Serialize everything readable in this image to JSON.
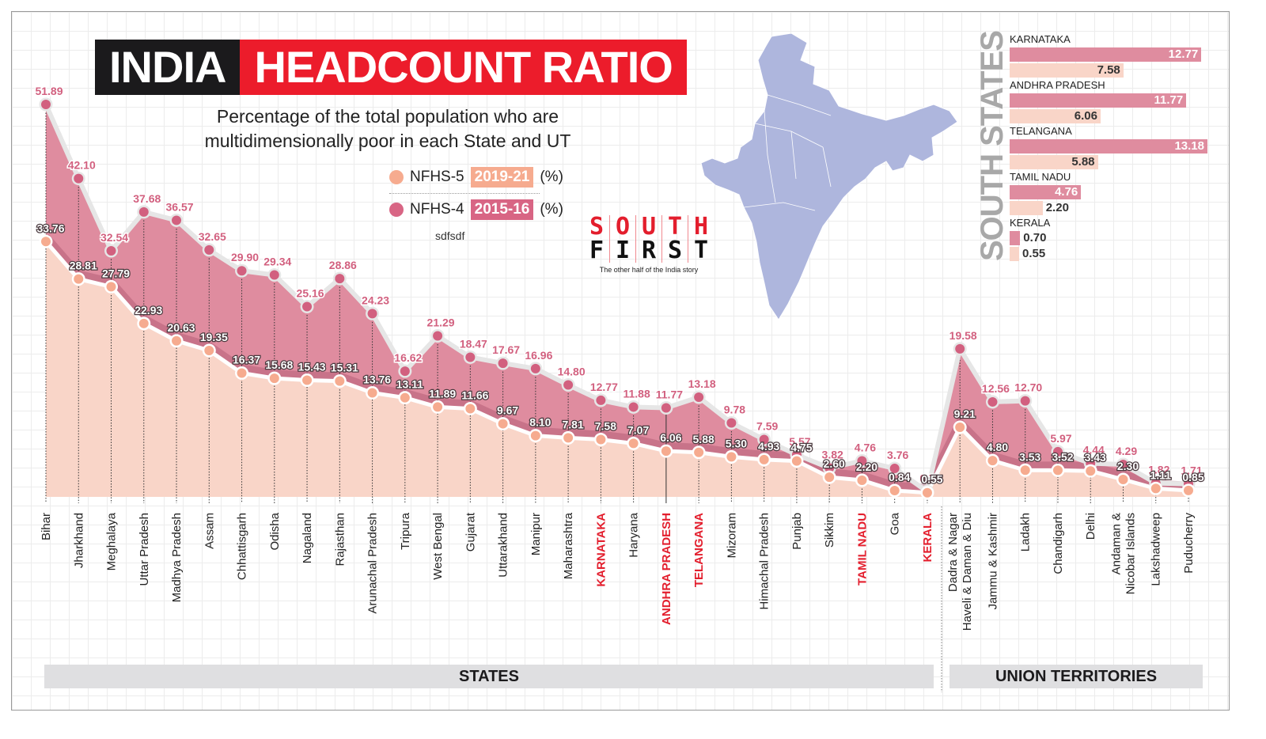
{
  "header": {
    "title_part1": "INDIA",
    "title_part2": "HEADCOUNT RATIO",
    "subtitle_line1": "Percentage of the total population who are",
    "subtitle_line2": "multidimensionally poor in each State and UT",
    "stray_text": "sdfsdf"
  },
  "legend": {
    "items": [
      {
        "label": "NFHS-5",
        "year": "2019-21",
        "unit": "(%)",
        "color": "#f6ab8f"
      },
      {
        "label": "NFHS-4",
        "year": "2015-16",
        "unit": "(%)",
        "color": "#d86584"
      }
    ]
  },
  "logo": {
    "row1": [
      "S",
      "O",
      "U",
      "T",
      "H"
    ],
    "row2": [
      "F",
      "I",
      "R",
      "S",
      "T"
    ],
    "tagline": "The other half of the India story",
    "color_red": "#e31e2d",
    "color_black": "#111111"
  },
  "colors": {
    "nfhs4_fill": "#df8c9f",
    "nfhs4_point": "#d2607f",
    "nfhs4_label": "#d2607f",
    "nfhs5_fill": "#f9d5c8",
    "nfhs5_point": "#f6ab8f",
    "highlight_label": "#e31e2d",
    "map": "#aeb6dd"
  },
  "south_panel": {
    "title": "SOUTH STATES",
    "states": [
      {
        "name": "KARNATAKA",
        "nfhs4": 12.77,
        "nfhs5": 7.58,
        "nfhs4_label": "12.77",
        "nfhs5_label": "7.58"
      },
      {
        "name": "ANDHRA PRADESH",
        "nfhs4": 11.77,
        "nfhs5": 6.06,
        "nfhs4_label": "11.77",
        "nfhs5_label": "6.06"
      },
      {
        "name": "TELANGANA",
        "nfhs4": 13.18,
        "nfhs5": 5.88,
        "nfhs4_label": "13.18",
        "nfhs5_label": "5.88"
      },
      {
        "name": "TAMIL NADU",
        "nfhs4": 4.76,
        "nfhs5": 2.2,
        "nfhs4_label": "4.76",
        "nfhs5_label": "2.20"
      },
      {
        "name": "KERALA",
        "nfhs4": 0.7,
        "nfhs5": 0.55,
        "nfhs4_label": "0.70",
        "nfhs5_label": "0.55"
      }
    ]
  },
  "footer": {
    "states_label": "STATES",
    "uts_label": "UNION TERRITORIES"
  },
  "chart_data": {
    "type": "area",
    "title": "INDIA HEADCOUNT RATIO",
    "subtitle": "Percentage of the total population who are multidimensionally poor in each State and UT",
    "xlabel": "",
    "ylabel": "",
    "ylim": [
      0,
      52
    ],
    "grid": true,
    "legend_position": "top-center",
    "categories": [
      "Bihar",
      "Jharkhand",
      "Meghalaya",
      "Uttar Pradesh",
      "Madhya Pradesh",
      "Assam",
      "Chhattisgarh",
      "Odisha",
      "Nagaland",
      "Rajasthan",
      "Arunachal Pradesh",
      "Tripura",
      "West Bengal",
      "Gujarat",
      "Uttarakhand",
      "Manipur",
      "Maharashtra",
      "KARNATAKA",
      "Haryana",
      "ANDHRA PRADESH",
      "TELANGANA",
      "Mizoram",
      "Himachal Pradesh",
      "Punjab",
      "Sikkim",
      "TAMIL NADU",
      "Goa",
      "KERALA",
      "Dadra & Nagar Haveli & Daman & Diu",
      "Jammu & Kashmir",
      "Ladakh",
      "Chandigarh",
      "Delhi",
      "Andaman & Nicobar Islands",
      "Lakshadweep",
      "Puducherry"
    ],
    "highlighted": [
      "KARNATAKA",
      "ANDHRA PRADESH",
      "TELANGANA",
      "TAMIL NADU",
      "KERALA"
    ],
    "group_split_index": 28,
    "groups": [
      "STATES",
      "UNION TERRITORIES"
    ],
    "series": [
      {
        "name": "NFHS-4 2015-16 (%)",
        "values": [
          51.89,
          42.1,
          32.54,
          37.68,
          36.57,
          32.65,
          29.9,
          29.34,
          25.16,
          28.86,
          24.23,
          16.62,
          21.29,
          18.47,
          17.67,
          16.96,
          14.8,
          12.77,
          11.88,
          11.77,
          13.18,
          9.78,
          7.59,
          5.57,
          3.82,
          4.76,
          3.76,
          0.7,
          19.58,
          12.56,
          12.7,
          5.97,
          4.44,
          4.29,
          1.82,
          1.71
        ],
        "labels": [
          "51.89",
          "42.10",
          "32.54",
          "37.68",
          "36.57",
          "32.65",
          "29.90",
          "29.34",
          "25.16",
          "28.86",
          "24.23",
          "16.62",
          "21.29",
          "18.47",
          "17.67",
          "16.96",
          "14.80",
          "12.77",
          "11.88",
          "11.77",
          "13.18",
          "9.78",
          "7.59",
          "5.57",
          "3.82",
          "4.76",
          "3.76",
          "0.70",
          "19.58",
          "12.56",
          "12.70",
          "5.97",
          "4.44",
          "4.29",
          "1.82",
          "1.71"
        ]
      },
      {
        "name": "NFHS-5 2019-21 (%)",
        "values": [
          33.76,
          28.81,
          27.79,
          22.93,
          20.63,
          19.35,
          16.37,
          15.68,
          15.43,
          15.31,
          13.76,
          13.11,
          11.89,
          11.66,
          9.67,
          8.1,
          7.81,
          7.58,
          7.07,
          6.06,
          5.88,
          5.3,
          4.93,
          4.75,
          2.6,
          2.2,
          0.84,
          0.55,
          9.21,
          4.8,
          3.53,
          3.52,
          3.43,
          2.3,
          1.11,
          0.85
        ],
        "labels": [
          "33.76",
          "28.81",
          "27.79",
          "22.93",
          "20.63",
          "19.35",
          "16.37",
          "15.68",
          "15.43",
          "15.31",
          "13.76",
          "13.11",
          "11.89",
          "11.66",
          "9.67",
          "8.10",
          "7.81",
          "7.58",
          "7.07",
          "6.06",
          "5.88",
          "5.30",
          "4.93",
          "4.75",
          "2.60",
          "2.20",
          "0.84",
          "0.55",
          "9.21",
          "4.80",
          "3.53",
          "3.52",
          "3.43",
          "2.30",
          "1.11",
          "0.85"
        ]
      }
    ]
  }
}
